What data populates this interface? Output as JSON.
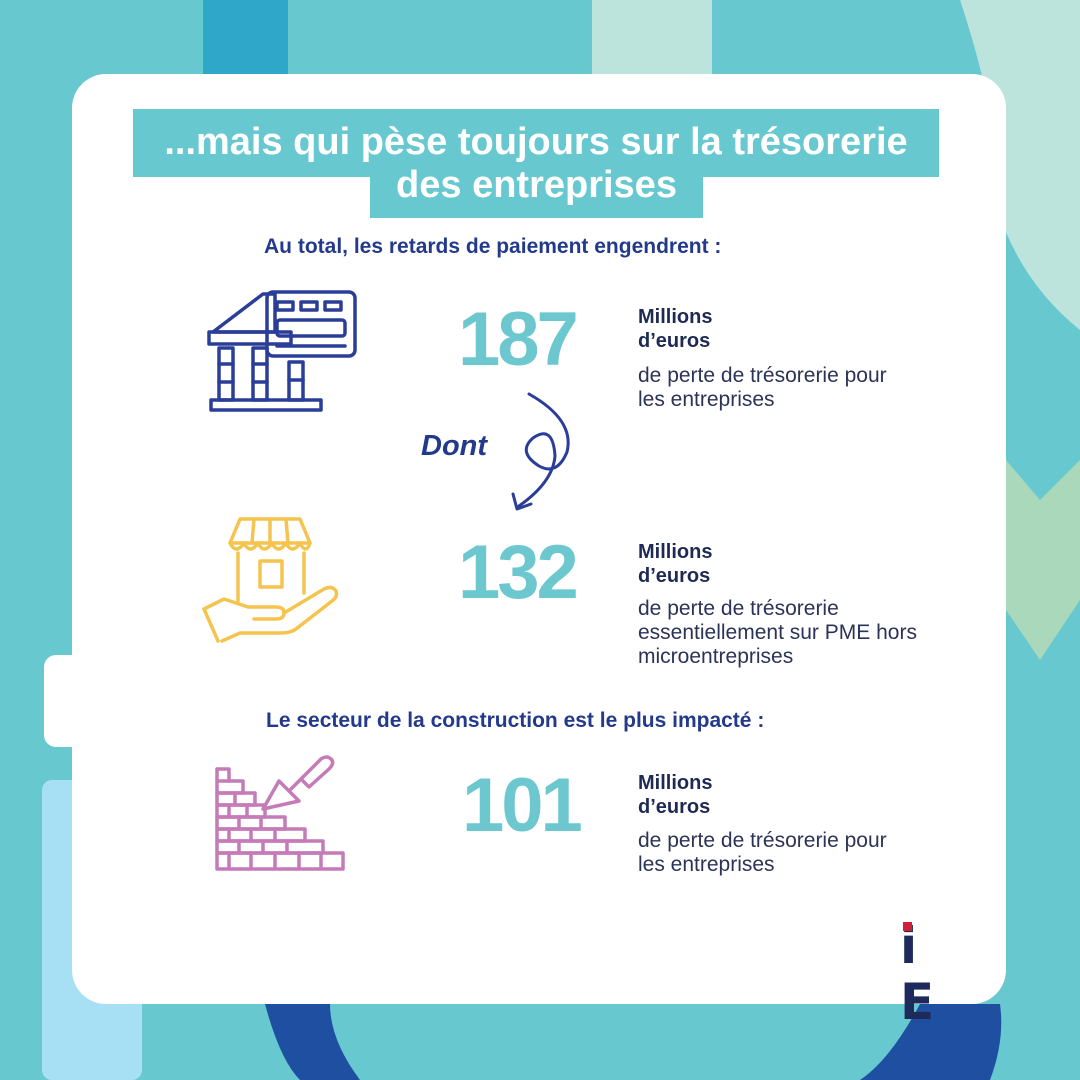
{
  "title": {
    "line1": "...mais qui pèse toujours sur la trésorerie",
    "line2": "des entreprises"
  },
  "subtitle_total": "Au total, les retards de paiement engendrent  :",
  "subtitle_sector": "Le secteur de la construction est le plus impacté :",
  "connector_label": "Dont",
  "stats": [
    {
      "value": "187",
      "unit_line1": "Millions",
      "unit_line2": "d’euros",
      "desc_line1": "de perte de trésorerie  pour",
      "desc_line2": "les entreprises",
      "icon": "bank-card-icon",
      "icon_color": "#2a3d99"
    },
    {
      "value": "132",
      "unit_line1": "Millions",
      "unit_line2": "d’euros",
      "desc_line1": "de perte de trésorerie",
      "desc_line2": "essentiellement sur PME hors",
      "desc_line3": "microentreprises",
      "icon": "shop-in-hand-icon",
      "icon_color": "#f5c44e"
    },
    {
      "value": "101",
      "unit_line1": "Millions",
      "unit_line2": "d’euros",
      "desc_line1": "de perte de trésorerie pour",
      "desc_line2": "les entreprises",
      "icon": "brick-wall-trowel-icon",
      "icon_color": "#c47bb8"
    }
  ],
  "logo": {
    "text_i": "i",
    "text_e": "E",
    "dot_color": "#d11e3a"
  },
  "colors": {
    "teal": "#67c8d0",
    "navy": "#233a8c",
    "number_teal": "#6cc7cf"
  }
}
